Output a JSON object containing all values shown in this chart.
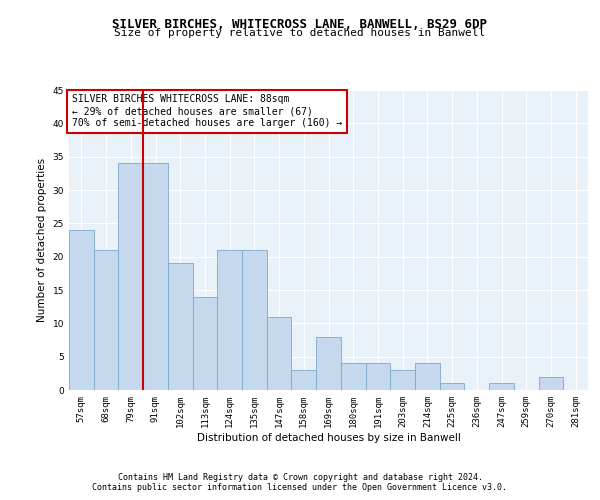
{
  "title": "SILVER BIRCHES, WHITECROSS LANE, BANWELL, BS29 6DP",
  "subtitle": "Size of property relative to detached houses in Banwell",
  "xlabel": "Distribution of detached houses by size in Banwell",
  "ylabel": "Number of detached properties",
  "categories": [
    "57sqm",
    "68sqm",
    "79sqm",
    "91sqm",
    "102sqm",
    "113sqm",
    "124sqm",
    "135sqm",
    "147sqm",
    "158sqm",
    "169sqm",
    "180sqm",
    "191sqm",
    "203sqm",
    "214sqm",
    "225sqm",
    "236sqm",
    "247sqm",
    "259sqm",
    "270sqm",
    "281sqm"
  ],
  "values": [
    24,
    21,
    34,
    34,
    19,
    14,
    21,
    21,
    11,
    3,
    8,
    4,
    4,
    3,
    4,
    1,
    0,
    1,
    0,
    2,
    0
  ],
  "bar_color": "#c5d8ed",
  "bar_edge_color": "#7aaac8",
  "annotation_text_line1": "SILVER BIRCHES WHITECROSS LANE: 88sqm",
  "annotation_text_line2": "← 29% of detached houses are smaller (67)",
  "annotation_text_line3": "70% of semi-detached houses are larger (160) →",
  "annotation_box_color": "#ffffff",
  "annotation_box_edge": "#cc0000",
  "vline_color": "#cc0000",
  "ylim": [
    0,
    45
  ],
  "yticks": [
    0,
    5,
    10,
    15,
    20,
    25,
    30,
    35,
    40,
    45
  ],
  "footer_line1": "Contains HM Land Registry data © Crown copyright and database right 2024.",
  "footer_line2": "Contains public sector information licensed under the Open Government Licence v3.0.",
  "bg_color": "#e8f0f8",
  "fig_bg_color": "#ffffff",
  "title_fontsize": 9,
  "subtitle_fontsize": 8,
  "axis_label_fontsize": 7.5,
  "tick_fontsize": 6.5,
  "footer_fontsize": 6,
  "annotation_fontsize": 7,
  "ylabel_fontsize": 7.5
}
